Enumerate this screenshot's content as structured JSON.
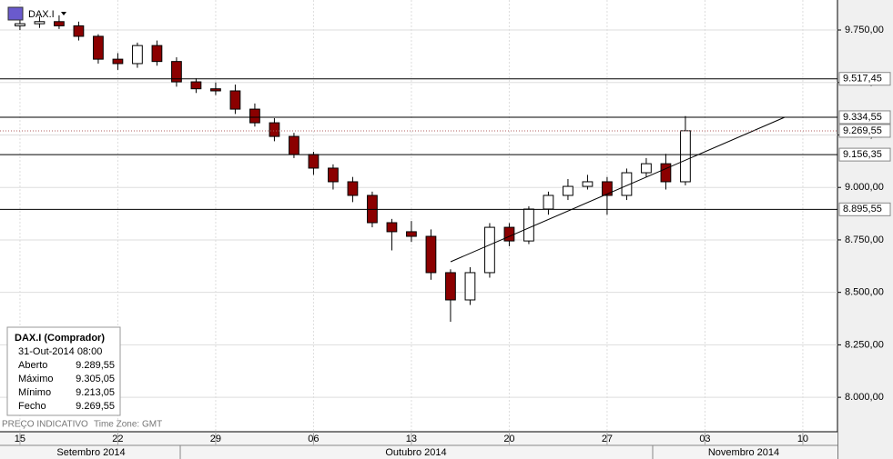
{
  "chart_data": {
    "type": "candlestick",
    "title": "DAX.I",
    "x": [
      0,
      1,
      2,
      3,
      4,
      5,
      6,
      7,
      8,
      9,
      10,
      11,
      12,
      13,
      14,
      15,
      16,
      17,
      18,
      19,
      20,
      21,
      22,
      23,
      24,
      25,
      26,
      27,
      28,
      29,
      30,
      31,
      32,
      33,
      34
    ],
    "open": [
      9770,
      9780,
      9790,
      9770,
      9720,
      9611,
      9590,
      9676,
      9600,
      9503,
      9470,
      9460,
      9373,
      9308,
      9243,
      9157,
      9092,
      9027,
      8962,
      8832,
      8789,
      8767,
      8594,
      8464,
      8594,
      8810,
      8745,
      8897,
      8962,
      9005,
      9027,
      8962,
      9070,
      9113,
      9027
    ],
    "high": [
      9810,
      9815,
      9820,
      9790,
      9730,
      9640,
      9690,
      9700,
      9620,
      9520,
      9500,
      9490,
      9400,
      9330,
      9260,
      9170,
      9110,
      9050,
      8980,
      8850,
      8840,
      8800,
      8610,
      8620,
      8830,
      8830,
      8910,
      8980,
      9040,
      9060,
      9050,
      9090,
      9140,
      9160,
      9340
    ],
    "low": [
      9750,
      9760,
      9755,
      9700,
      9590,
      9560,
      9570,
      9580,
      9480,
      9450,
      9440,
      9350,
      9290,
      9220,
      9140,
      9060,
      8990,
      8930,
      8810,
      8700,
      8740,
      8560,
      8360,
      8440,
      8570,
      8720,
      8730,
      8870,
      8940,
      8990,
      8870,
      8940,
      9050,
      8990,
      9010
    ],
    "close": [
      9780,
      9790,
      9770,
      9720,
      9611,
      9590,
      9676,
      9600,
      9503,
      9470,
      9460,
      9373,
      9308,
      9243,
      9157,
      9092,
      9027,
      8962,
      8832,
      8789,
      8767,
      8594,
      8464,
      8594,
      8810,
      8745,
      8897,
      8962,
      9005,
      9027,
      8962,
      9070,
      9113,
      9027,
      9270
    ],
    "up_color": "#ffffff",
    "down_color": "#8b0000",
    "xlim": [
      -1.02,
      41.77
    ],
    "xticks": [
      {
        "value": 0,
        "label": "15"
      },
      {
        "value": 5,
        "label": "22"
      },
      {
        "value": 10,
        "label": "29"
      },
      {
        "value": 15,
        "label": "06"
      },
      {
        "value": 20,
        "label": "13"
      },
      {
        "value": 25,
        "label": "20"
      },
      {
        "value": 30,
        "label": "27"
      },
      {
        "value": 35,
        "label": "03"
      },
      {
        "value": 40,
        "label": "10"
      }
    ],
    "months": [
      "Setembro 2014",
      "Outubro 2014",
      "Novembro 2014"
    ],
    "ylim": [
      7836,
      9893
    ],
    "yticks": [
      {
        "value": 8000,
        "label": "8.000,00"
      },
      {
        "value": 8250,
        "label": "8.250,00"
      },
      {
        "value": 8500,
        "label": "8.500,00"
      },
      {
        "value": 8750,
        "label": "8.750,00"
      },
      {
        "value": 9000,
        "label": "9.000,00"
      },
      {
        "value": 9250,
        "label": "9.250,00"
      },
      {
        "value": 9500,
        "label": "9.500,00"
      },
      {
        "value": 9750,
        "label": "9.750,00"
      }
    ],
    "levels": [
      {
        "value": 9517.45,
        "label": "9.517,45"
      },
      {
        "value": 9334.55,
        "label": "9.334,55"
      },
      {
        "value": 9269.55,
        "label": "9.269,55"
      },
      {
        "value": 9156.35,
        "label": "9.156,35"
      },
      {
        "value": 8895.55,
        "label": "8.895,55"
      }
    ],
    "grid": true
  },
  "info_box": {
    "title": "DAX.I (Comprador)",
    "date": "31-Out-2014 08:00",
    "rows": [
      [
        "Aberto",
        "9.289,55"
      ],
      [
        "Máximo",
        "9.305,05"
      ],
      [
        "Mínimo",
        "9.213,05"
      ],
      [
        "Fecho",
        "9.269,55"
      ]
    ]
  },
  "footer": {
    "price_note": "PREÇO INDICATIVO",
    "timezone": "Time Zone: GMT"
  }
}
